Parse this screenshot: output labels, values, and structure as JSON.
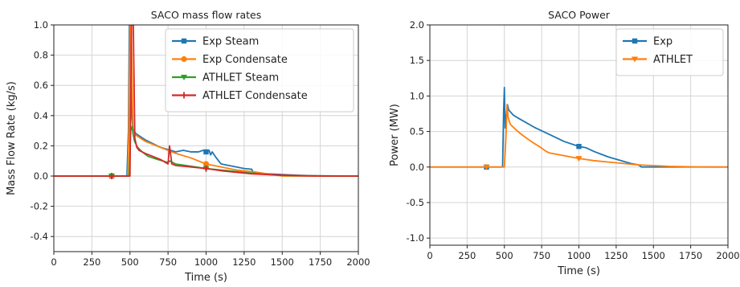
{
  "chart_data": [
    {
      "type": "line",
      "title": "SACO mass flow rates",
      "xlabel": "Time (s)",
      "ylabel": "Mass Flow Rate (kg/s)",
      "xlim": [
        0,
        2000
      ],
      "ylim": [
        -0.5,
        1.0
      ],
      "xticks": [
        0,
        250,
        500,
        750,
        1000,
        1250,
        1500,
        1750,
        2000
      ],
      "yticks": [
        "-0.4",
        "-0.2",
        "0.0",
        "0.2",
        "0.4",
        "0.6",
        "0.8",
        "1.0"
      ],
      "yticks_num": [
        -0.4,
        -0.2,
        0.0,
        0.2,
        0.4,
        0.6,
        0.8,
        1.0
      ],
      "grid": true,
      "legend_position": "top-right",
      "series": [
        {
          "name": "Exp Steam",
          "color": "#1f77b4",
          "marker": "square",
          "x": [
            0,
            480,
            490,
            496,
            505,
            512,
            520,
            540,
            600,
            700,
            800,
            850,
            900,
            950,
            980,
            1000,
            1020,
            1030,
            1040,
            1060,
            1090,
            1100,
            1150,
            1200,
            1250,
            1300,
            1310,
            1400,
            1500,
            1600,
            1700,
            1800,
            2000
          ],
          "y": [
            0,
            0,
            0.3,
            1.0,
            1.0,
            0.4,
            0.31,
            0.28,
            0.24,
            0.19,
            0.16,
            0.17,
            0.16,
            0.16,
            0.17,
            0.16,
            0.17,
            0.14,
            0.16,
            0.13,
            0.09,
            0.08,
            0.07,
            0.06,
            0.05,
            0.045,
            0.02,
            0.015,
            0.01,
            0.005,
            0.002,
            0,
            0
          ]
        },
        {
          "name": "Exp Condensate",
          "color": "#ff7f0e",
          "marker": "circle",
          "x": [
            0,
            485,
            492,
            500,
            508,
            520,
            540,
            600,
            700,
            800,
            900,
            1000,
            1100,
            1200,
            1300,
            1400,
            1500,
            1600,
            1700,
            2000
          ],
          "y": [
            0,
            0,
            0.25,
            1.0,
            1.0,
            0.3,
            0.27,
            0.23,
            0.19,
            0.15,
            0.12,
            0.08,
            0.06,
            0.04,
            0.03,
            0.015,
            0,
            0,
            0,
            0
          ]
        },
        {
          "name": "ATHLET Steam",
          "color": "#2ca02c",
          "marker": "triangle",
          "x": [
            0,
            495,
            505,
            515,
            520,
            530,
            550,
            580,
            620,
            680,
            750,
            760,
            800,
            900,
            1000,
            1100,
            1200,
            1300,
            1400,
            1500,
            1600,
            2000
          ],
          "y": [
            0,
            0,
            0.3,
            0.33,
            0.28,
            0.23,
            0.19,
            0.16,
            0.13,
            0.11,
            0.09,
            0.1,
            0.08,
            0.065,
            0.05,
            0.04,
            0.03,
            0.02,
            0.01,
            0.005,
            0.002,
            0
          ]
        },
        {
          "name": "ATHLET Condensate",
          "color": "#d62728",
          "marker": "plus",
          "x": [
            0,
            500,
            510,
            522,
            532,
            545,
            560,
            600,
            650,
            700,
            750,
            760,
            775,
            800,
            900,
            1000,
            1100,
            1200,
            1300,
            1400,
            1500,
            1600,
            1700,
            2000
          ],
          "y": [
            0,
            0,
            1.0,
            1.0,
            0.25,
            0.19,
            0.17,
            0.15,
            0.13,
            0.11,
            0.08,
            0.2,
            0.08,
            0.07,
            0.06,
            0.05,
            0.035,
            0.025,
            0.015,
            0.01,
            0.006,
            0.003,
            0.001,
            0
          ]
        }
      ]
    },
    {
      "type": "line",
      "title": "SACO Power",
      "xlabel": "Time (s)",
      "ylabel": "Power (MW)",
      "xlim": [
        0,
        2000
      ],
      "ylim": [
        -1.1,
        2.0
      ],
      "xticks": [
        0,
        250,
        500,
        750,
        1000,
        1250,
        1500,
        1750,
        2000
      ],
      "yticks": [
        "-1.0",
        "-0.5",
        "0.0",
        "0.5",
        "1.0",
        "1.5",
        "2.0"
      ],
      "yticks_num": [
        -1.0,
        -0.5,
        0.0,
        0.5,
        1.0,
        1.5,
        2.0
      ],
      "grid": true,
      "legend_position": "top-right",
      "series": [
        {
          "name": "Exp",
          "color": "#1f77b4",
          "marker": "square",
          "x": [
            0,
            488,
            495,
            500,
            505,
            512,
            520,
            530,
            560,
            600,
            700,
            800,
            900,
            1000,
            1050,
            1100,
            1150,
            1200,
            1250,
            1300,
            1350,
            1400,
            1420,
            1500,
            1600,
            1700,
            1800,
            2000
          ],
          "y": [
            0,
            0,
            0.8,
            1.12,
            0.55,
            0.7,
            0.88,
            0.8,
            0.73,
            0.68,
            0.56,
            0.46,
            0.36,
            0.29,
            0.27,
            0.22,
            0.18,
            0.14,
            0.11,
            0.08,
            0.05,
            0.03,
            0,
            0,
            0,
            0,
            0,
            0
          ]
        },
        {
          "name": "ATHLET",
          "color": "#ff7f0e",
          "marker": "triangle",
          "x": [
            0,
            500,
            510,
            518,
            525,
            540,
            580,
            620,
            680,
            740,
            780,
            800,
            900,
            1000,
            1100,
            1200,
            1300,
            1400,
            1500,
            1600,
            1700,
            1800,
            2000
          ],
          "y": [
            0,
            0,
            0.4,
            0.88,
            0.7,
            0.6,
            0.52,
            0.45,
            0.36,
            0.28,
            0.22,
            0.2,
            0.16,
            0.12,
            0.09,
            0.07,
            0.05,
            0.03,
            0.02,
            0.01,
            0.005,
            0.002,
            0
          ]
        }
      ]
    }
  ]
}
